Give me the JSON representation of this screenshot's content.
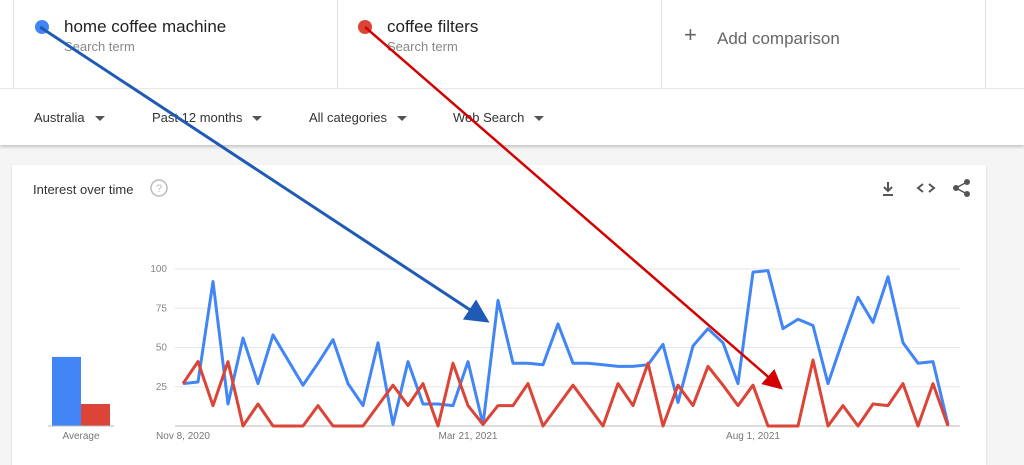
{
  "header": {
    "subtitles": [
      "Search term",
      "Search term"
    ],
    "add": "Add comparison"
  },
  "filters": [
    "Australia",
    "Past 12 months",
    "All categories",
    "Web Search"
  ],
  "card": {
    "title": "Interest over time"
  },
  "chart_data": {
    "type": "line",
    "average_label": "Average",
    "x": [
      "Nov 8, 2020",
      null,
      null,
      null,
      null,
      null,
      null,
      null,
      null,
      null,
      null,
      null,
      null,
      null,
      null,
      null,
      null,
      null,
      null,
      "Mar 21, 2021",
      null,
      null,
      null,
      null,
      null,
      null,
      null,
      null,
      null,
      null,
      null,
      null,
      null,
      null,
      null,
      null,
      null,
      null,
      "Aug 1, 2021",
      null,
      null,
      null,
      null,
      null,
      null,
      null,
      null,
      null,
      null,
      null,
      null,
      null
    ],
    "ylim": [
      0,
      100
    ],
    "yticks": [
      25,
      50,
      75,
      100
    ],
    "grid": true,
    "series": [
      {
        "name": "home coffee machine",
        "color": "#4285f4",
        "average": 44,
        "values": [
          27,
          28,
          92,
          14,
          56,
          27,
          58,
          42,
          26,
          40,
          55,
          27,
          13,
          53,
          1,
          41,
          14,
          14,
          13,
          41,
          1,
          80,
          40,
          40,
          39,
          65,
          40,
          40,
          39,
          38,
          38,
          39,
          52,
          15,
          51,
          62,
          53,
          27,
          98,
          99,
          62,
          68,
          64,
          27,
          55,
          82,
          66,
          95,
          53,
          40,
          41,
          1
        ]
      },
      {
        "name": "coffee filters",
        "color": "#db4437",
        "average": 14,
        "values": [
          27,
          41,
          13,
          41,
          0,
          14,
          0,
          0,
          0,
          13,
          0,
          0,
          0,
          13,
          26,
          13,
          27,
          0,
          40,
          13,
          1,
          13,
          13,
          27,
          0,
          13,
          26,
          13,
          0,
          27,
          13,
          40,
          0,
          26,
          13,
          38,
          26,
          13,
          26,
          0,
          0,
          0,
          42,
          0,
          13,
          0,
          14,
          13,
          27,
          0,
          27,
          0
        ]
      }
    ]
  }
}
